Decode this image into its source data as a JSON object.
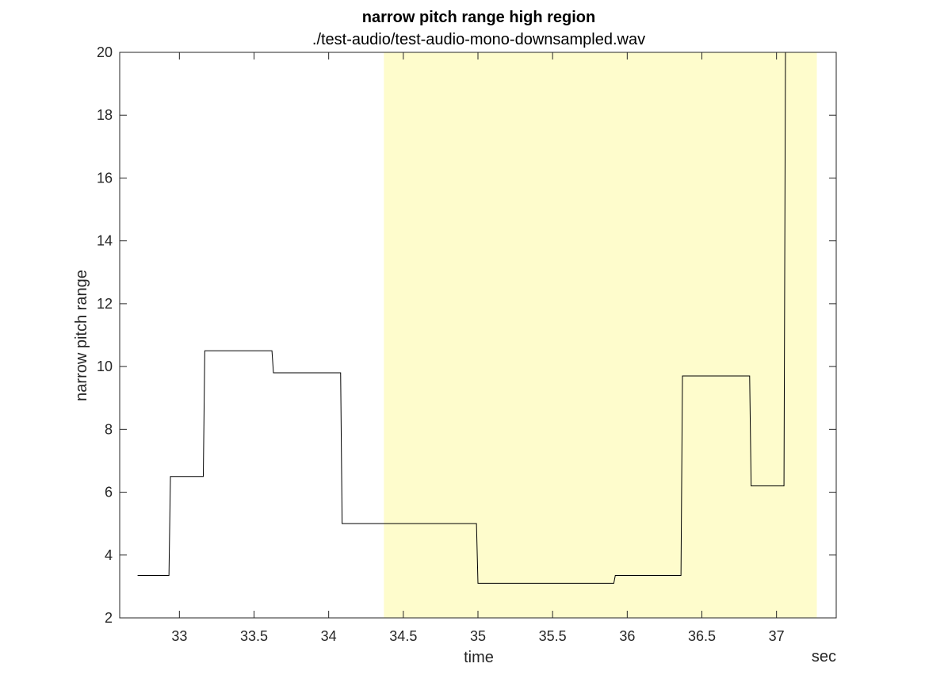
{
  "chart_data": {
    "type": "line",
    "title": "narrow pitch range high region",
    "subtitle": "./test-audio/test-audio-mono-downsampled.wav",
    "xlabel": "time",
    "xunit": "sec",
    "ylabel": "narrow pitch range",
    "xlim": [
      32.6,
      37.4
    ],
    "ylim": [
      2,
      20
    ],
    "xticks": [
      33,
      33.5,
      34,
      34.5,
      35,
      35.5,
      36,
      36.5,
      37
    ],
    "yticks": [
      2,
      4,
      6,
      8,
      10,
      12,
      14,
      16,
      18,
      20
    ],
    "grid": false,
    "legend": "none",
    "highlight_region": {
      "x": [
        34.37,
        37.27
      ],
      "color": "#fefccc"
    },
    "series": [
      {
        "line_color": "#000000",
        "x": [
          32.72,
          32.93,
          32.94,
          33.16,
          33.17,
          33.62,
          33.63,
          34.08,
          34.09,
          34.99,
          35.0,
          35.91,
          35.92,
          36.36,
          36.37,
          36.82,
          36.83,
          37.05,
          37.06,
          37.27
        ],
        "values": [
          3.35,
          3.35,
          6.5,
          6.5,
          10.5,
          10.5,
          9.8,
          9.8,
          5.0,
          5.0,
          3.1,
          3.1,
          3.35,
          3.35,
          9.7,
          9.7,
          6.2,
          6.2,
          20.0,
          20.0
        ]
      }
    ]
  }
}
